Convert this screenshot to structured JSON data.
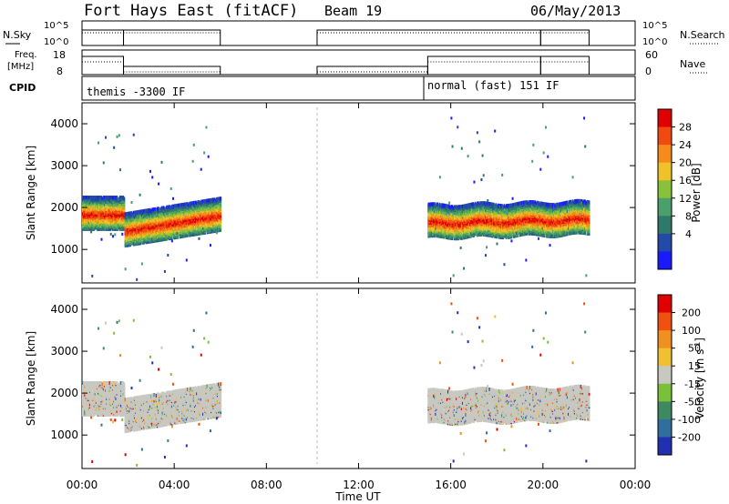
{
  "header": {
    "title": "Fort Hays East (fitACF)",
    "beam": "Beam 19",
    "date": "06/May/2013"
  },
  "noise_panel": {
    "left_label": "N.Sky",
    "right_label": "N.Search",
    "left_ticks": [
      "10^5",
      "10^0"
    ],
    "right_ticks": [
      "10^5",
      "10^0"
    ]
  },
  "freq_panel": {
    "left_label_line1": "Freq.",
    "left_label_line2": "[MHz]",
    "right_label": "Nave",
    "left_ticks": [
      "18",
      "8"
    ],
    "right_ticks": [
      "60",
      "0"
    ]
  },
  "cpid_panel": {
    "label": "CPID",
    "modes": [
      {
        "name": "themis -3300 IF",
        "start_h": 0.0
      },
      {
        "name": "normal (fast) 151 IF",
        "start_h": 15.0
      }
    ]
  },
  "colors": {
    "power": [
      "#1a1aff",
      "#234aa8",
      "#2e7a6a",
      "#4aa06a",
      "#89c13a",
      "#f0c22a",
      "#f58b1a",
      "#f04a10",
      "#e00000"
    ],
    "velocity": [
      "#2030b0",
      "#2f6fa0",
      "#3e8a60",
      "#7ac13a",
      "#c8c8c0",
      "#f0c030",
      "#f09020",
      "#f05010",
      "#e00000"
    ]
  },
  "chart_data": [
    {
      "type": "heatmap",
      "panel": "power",
      "ylabel": "Slant Range [km]",
      "ylim": [
        200,
        4500
      ],
      "yticks": [
        1000,
        2000,
        3000,
        4000
      ],
      "xlim": [
        0,
        24
      ],
      "colorbar_label": "Power [dB]",
      "colorbar_ticks": [
        4,
        8,
        12,
        16,
        20,
        24,
        28
      ],
      "segments": [
        {
          "t0": 0.0,
          "t1": 6.0,
          "center_km": 1750,
          "note_band": [
            1500,
            2400
          ]
        },
        {
          "t0": 15.0,
          "t1": 22.0,
          "center_km": 1700,
          "note_band": [
            1300,
            2400
          ]
        }
      ]
    },
    {
      "type": "heatmap",
      "panel": "velocity",
      "ylabel": "Slant Range [km]",
      "ylim": [
        200,
        4500
      ],
      "yticks": [
        1000,
        2000,
        3000,
        4000
      ],
      "xlim": [
        0,
        24
      ],
      "colorbar_label": "Velocity [m s^-1]",
      "colorbar_ticks": [
        "200",
        "100",
        "50",
        "15",
        "-15",
        "-50",
        "-100",
        "-200"
      ]
    }
  ],
  "x_axis": {
    "label": "Time UT",
    "ticks": [
      "00:00",
      "04:00",
      "08:00",
      "12:00",
      "16:00",
      "20:00",
      "00:00"
    ],
    "tick_hours": [
      0,
      4,
      8,
      12,
      16,
      20,
      24
    ]
  }
}
